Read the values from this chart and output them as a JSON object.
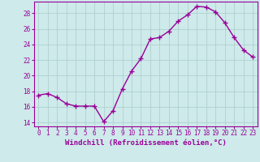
{
  "x": [
    0,
    1,
    2,
    3,
    4,
    5,
    6,
    7,
    8,
    9,
    10,
    11,
    12,
    13,
    14,
    15,
    16,
    17,
    18,
    19,
    20,
    21,
    22,
    23
  ],
  "y": [
    17.5,
    17.7,
    17.2,
    16.4,
    16.1,
    16.1,
    16.1,
    14.1,
    15.5,
    18.3,
    20.6,
    22.2,
    24.7,
    24.9,
    25.7,
    27.0,
    27.8,
    28.9,
    28.8,
    28.2,
    26.8,
    24.9,
    23.3,
    22.4
  ],
  "line_color": "#990099",
  "marker": "+",
  "markersize": 4,
  "linewidth": 1,
  "xlabel": "Windchill (Refroidissement éolien,°C)",
  "xlabel_fontsize": 6.5,
  "ylim": [
    13.5,
    29.5
  ],
  "xlim": [
    -0.5,
    23.5
  ],
  "yticks": [
    14,
    16,
    18,
    20,
    22,
    24,
    26,
    28
  ],
  "xticks": [
    0,
    1,
    2,
    3,
    4,
    5,
    6,
    7,
    8,
    9,
    10,
    11,
    12,
    13,
    14,
    15,
    16,
    17,
    18,
    19,
    20,
    21,
    22,
    23
  ],
  "bg_color": "#ceeaea",
  "grid_color": "#aacccc",
  "tick_color": "#990099",
  "tick_fontsize": 5.5,
  "label_color": "#990099",
  "spine_color": "#990099"
}
